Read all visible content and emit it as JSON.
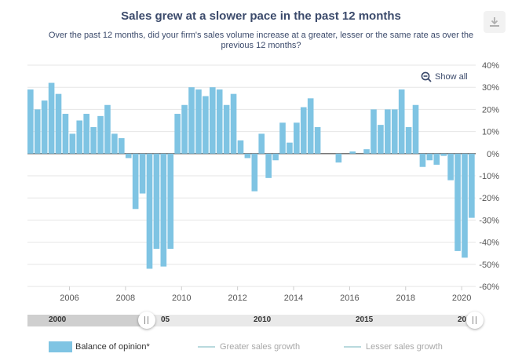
{
  "header": {
    "title": "Sales grew at a slower pace in the past 12 months",
    "subtitle": "Over the past 12 months, did your firm's sales volume increase at a greater, lesser or the same rate as over the previous 12 months?"
  },
  "controls": {
    "show_all": "Show all",
    "export_icon": "download-icon"
  },
  "navigator": {
    "labels": [
      "2000",
      "05",
      "2010",
      "2015",
      "20"
    ]
  },
  "colors": {
    "bar": "#7fc4e3",
    "text": "#3b4a6b",
    "line_series": "#b9d9dd"
  },
  "chart_data": {
    "type": "bar",
    "title": "Sales grew at a slower pace in the past 12 months",
    "xlabel": "",
    "ylabel": "",
    "ylim": [
      -60,
      40
    ],
    "y_ticks": [
      "40%",
      "30%",
      "20%",
      "10%",
      "0%",
      "-10%",
      "-20%",
      "-30%",
      "-40%",
      "-50%",
      "-60%"
    ],
    "x_ticks": [
      "2006",
      "2008",
      "2010",
      "2012",
      "2014",
      "2016",
      "2018",
      "2020"
    ],
    "grid": true,
    "legend_position": "bottom",
    "series": [
      {
        "name": "Balance of opinion*",
        "x": [
          2005.0,
          2005.25,
          2005.5,
          2005.75,
          2006.0,
          2006.25,
          2006.5,
          2006.75,
          2007.0,
          2007.25,
          2007.5,
          2007.75,
          2008.0,
          2008.25,
          2008.5,
          2008.75,
          2009.0,
          2009.25,
          2009.5,
          2009.75,
          2010.0,
          2010.25,
          2010.5,
          2010.75,
          2011.0,
          2011.25,
          2011.5,
          2011.75,
          2012.0,
          2012.25,
          2012.5,
          2012.75,
          2013.0,
          2013.25,
          2013.5,
          2013.75,
          2014.0,
          2014.25,
          2014.5,
          2014.75,
          2015.0,
          2015.25,
          2015.5,
          2015.75,
          2016.0,
          2016.25,
          2016.5,
          2016.75,
          2017.0,
          2017.25,
          2017.5,
          2017.75,
          2018.0,
          2018.25,
          2018.5,
          2018.75,
          2019.0,
          2019.25,
          2019.5,
          2019.75,
          2020.0,
          2020.25,
          2020.5,
          2020.75
        ],
        "values": [
          29,
          20,
          24,
          32,
          27,
          18,
          9,
          15,
          18,
          12,
          17,
          22,
          9,
          7,
          -2,
          -25,
          -18,
          -52,
          -43,
          -51,
          -43,
          18,
          22,
          30,
          29,
          26,
          30,
          29,
          22,
          27,
          6,
          -2,
          -17,
          9,
          -11,
          -3,
          14,
          5,
          14,
          21,
          25,
          12,
          0,
          0,
          -4,
          0,
          1,
          0,
          2,
          20,
          13,
          20,
          20,
          29,
          12,
          22,
          -6,
          -3,
          -5,
          -1,
          -12,
          -44,
          -47,
          -29
        ]
      },
      {
        "name": "Greater sales growth",
        "values": []
      },
      {
        "name": "Lesser sales growth",
        "values": []
      }
    ]
  }
}
